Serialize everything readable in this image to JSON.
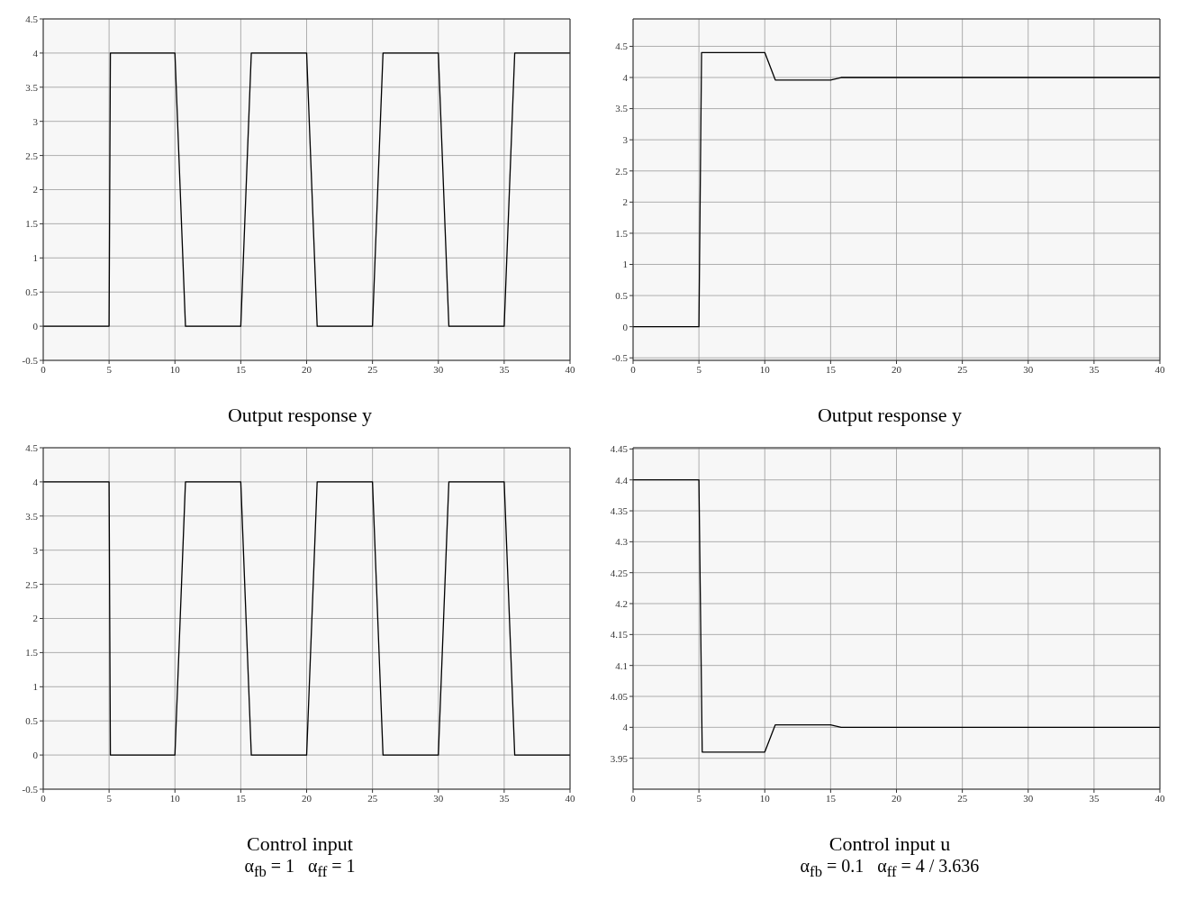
{
  "chart_data": [
    {
      "type": "line",
      "xlabel": "Output response y",
      "x": [
        0,
        5,
        5.1,
        10,
        10.8,
        15,
        15.8,
        20,
        20.8,
        25,
        25.8,
        30,
        30.8,
        35,
        35.8,
        40
      ],
      "values": [
        0,
        0,
        4,
        4,
        0,
        0,
        4,
        4,
        0,
        0,
        4,
        4,
        0,
        0,
        4,
        4
      ],
      "color": "#000000",
      "xlim": [
        0,
        40
      ],
      "xticks": [
        0,
        5,
        10,
        15,
        20,
        25,
        30,
        35,
        40
      ],
      "ylim": [
        -0.5,
        4.5
      ],
      "yticks": [
        -0.5,
        0,
        0.5,
        1,
        1.5,
        2,
        2.5,
        3,
        3.5,
        4,
        4.5
      ],
      "grid": true,
      "marker": "none"
    },
    {
      "type": "line",
      "xlabel": "Output response y",
      "x": [
        0,
        5,
        5.2,
        10,
        10.8,
        15,
        15.8,
        40
      ],
      "values": [
        0,
        0,
        4.4,
        4.4,
        3.96,
        3.96,
        4,
        4
      ],
      "color": "#000000",
      "xlim": [
        0,
        40
      ],
      "xticks": [
        0,
        5,
        10,
        15,
        20,
        25,
        30,
        35,
        40
      ],
      "ylim": [
        -0.54,
        4.94
      ],
      "yticks": [
        -0.5,
        0,
        0.5,
        1,
        1.5,
        2,
        2.5,
        3,
        3.5,
        4,
        4.5
      ],
      "grid": true,
      "marker": "none"
    },
    {
      "type": "line",
      "xlabel": "Control input",
      "annotations": [
        "α$_{fb}$ = 1   α$_{ff}$ = 1"
      ],
      "x": [
        0,
        5,
        5.1,
        10,
        10.8,
        15,
        15.8,
        20,
        20.8,
        25,
        25.8,
        30,
        30.8,
        35,
        35.8,
        40
      ],
      "values": [
        4,
        4,
        0,
        0,
        4,
        4,
        0,
        0,
        4,
        4,
        0,
        0,
        4,
        4,
        0,
        0
      ],
      "color": "#000000",
      "xlim": [
        0,
        40
      ],
      "xticks": [
        0,
        5,
        10,
        15,
        20,
        25,
        30,
        35,
        40
      ],
      "ylim": [
        -0.5,
        4.5
      ],
      "yticks": [
        -0.5,
        0,
        0.5,
        1,
        1.5,
        2,
        2.5,
        3,
        3.5,
        4,
        4.5
      ],
      "grid": true,
      "marker": "none"
    },
    {
      "type": "line",
      "xlabel": "Control input u",
      "annotations": [
        "α$_{fb}$ = 0.1   α$_{ff}$ = 4 / 3.636"
      ],
      "x": [
        0,
        5,
        5.25,
        10,
        10.8,
        15,
        15.8,
        40
      ],
      "values": [
        4.4,
        4.4,
        3.96,
        3.96,
        4.004,
        4.004,
        4,
        4
      ],
      "color": "#000000",
      "xlim": [
        0,
        40
      ],
      "xticks": [
        0,
        5,
        10,
        15,
        20,
        25,
        30,
        35,
        40
      ],
      "ylim": [
        3.9,
        4.452
      ],
      "yticks": [
        3.95,
        4,
        4.05,
        4.1,
        4.15,
        4.2,
        4.25,
        4.3,
        4.35,
        4.4,
        4.45
      ],
      "grid": true,
      "marker": "none"
    }
  ]
}
